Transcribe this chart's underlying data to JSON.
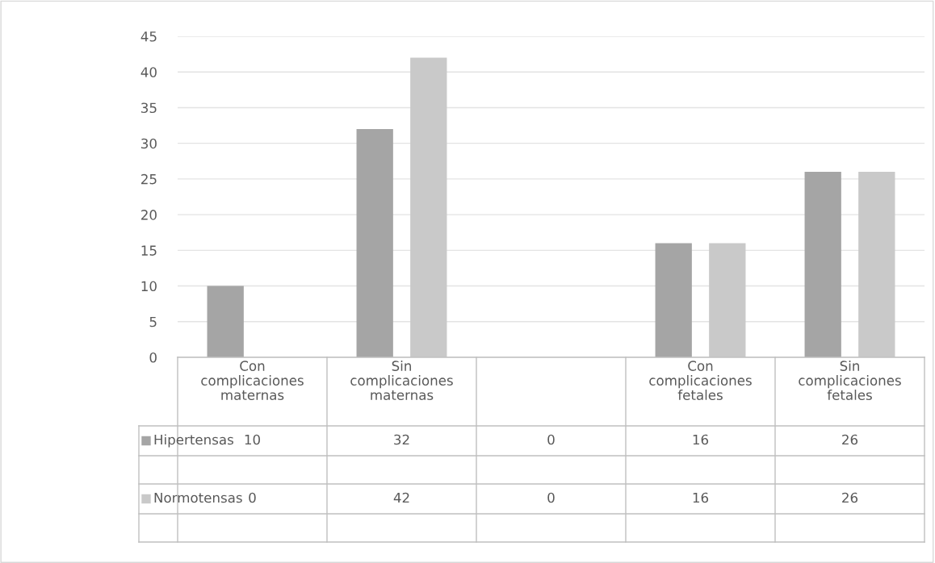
{
  "chart_data": {
    "type": "bar",
    "categories": [
      "Con complicaciones maternas",
      "Sin complicaciones maternas",
      null,
      "Con complicaciones fetales",
      "Sin complicaciones fetales"
    ],
    "series": [
      {
        "name": "Hipertensas",
        "color": "#a5a5a5",
        "values": [
          10,
          32,
          0,
          16,
          26
        ]
      },
      {
        "name": "Normotensas",
        "color": "#c9c9c9",
        "values": [
          0,
          42,
          0,
          16,
          26
        ]
      }
    ],
    "ylim": [
      0,
      45
    ],
    "yticks": [
      0,
      5,
      10,
      15,
      20,
      25,
      30,
      35,
      40,
      45
    ],
    "grid": "y",
    "legend": "bottom",
    "data_labels": true
  }
}
